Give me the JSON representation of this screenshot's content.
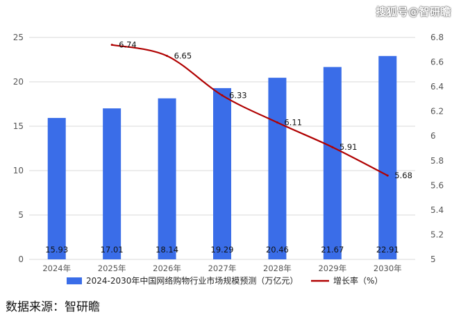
{
  "watermark": "搜狐号@智研瞻",
  "source_text": "数据来源：智研瞻",
  "colors": {
    "bar": "#3a6de8",
    "line": "#b00000",
    "grid": "#d9d9d9",
    "axis_text": "#555555"
  },
  "chart_data": {
    "type": "bar",
    "categories": [
      "2024年",
      "2025年",
      "2026年",
      "2027年",
      "2028年",
      "2029年",
      "2030年"
    ],
    "series": [
      {
        "name": "2024-2030年中国网络购物行业市场规模预测（万亿元）",
        "type": "bar",
        "axis": "left",
        "values": [
          15.93,
          17.01,
          18.14,
          19.29,
          20.46,
          21.67,
          22.91
        ],
        "value_labels": [
          "15.93",
          "17.01",
          "18.14",
          "19.29",
          "20.46",
          "21.67",
          "22.91"
        ]
      },
      {
        "name": "增长率（%）",
        "type": "line",
        "axis": "right",
        "values": [
          null,
          6.74,
          6.65,
          6.33,
          6.11,
          5.91,
          5.68
        ],
        "value_labels": [
          "",
          "6.74",
          "6.65",
          "6.33",
          "6.11",
          "5.91",
          "5.68"
        ]
      }
    ],
    "y_left": {
      "min": 0,
      "max": 25,
      "ticks": [
        0,
        5,
        10,
        15,
        20,
        25
      ],
      "tick_labels": [
        "0",
        "5",
        "10",
        "15",
        "20",
        "25"
      ]
    },
    "y_right": {
      "min": 5,
      "max": 6.8,
      "ticks": [
        5,
        5.2,
        5.4,
        5.6,
        5.8,
        6,
        6.2,
        6.4,
        6.6,
        6.8
      ],
      "tick_labels": [
        "5",
        "5.2",
        "5.4",
        "5.6",
        "5.8",
        "6",
        "6.2",
        "6.4",
        "6.6",
        "6.8"
      ]
    },
    "legend_position": "bottom",
    "grid": true
  }
}
